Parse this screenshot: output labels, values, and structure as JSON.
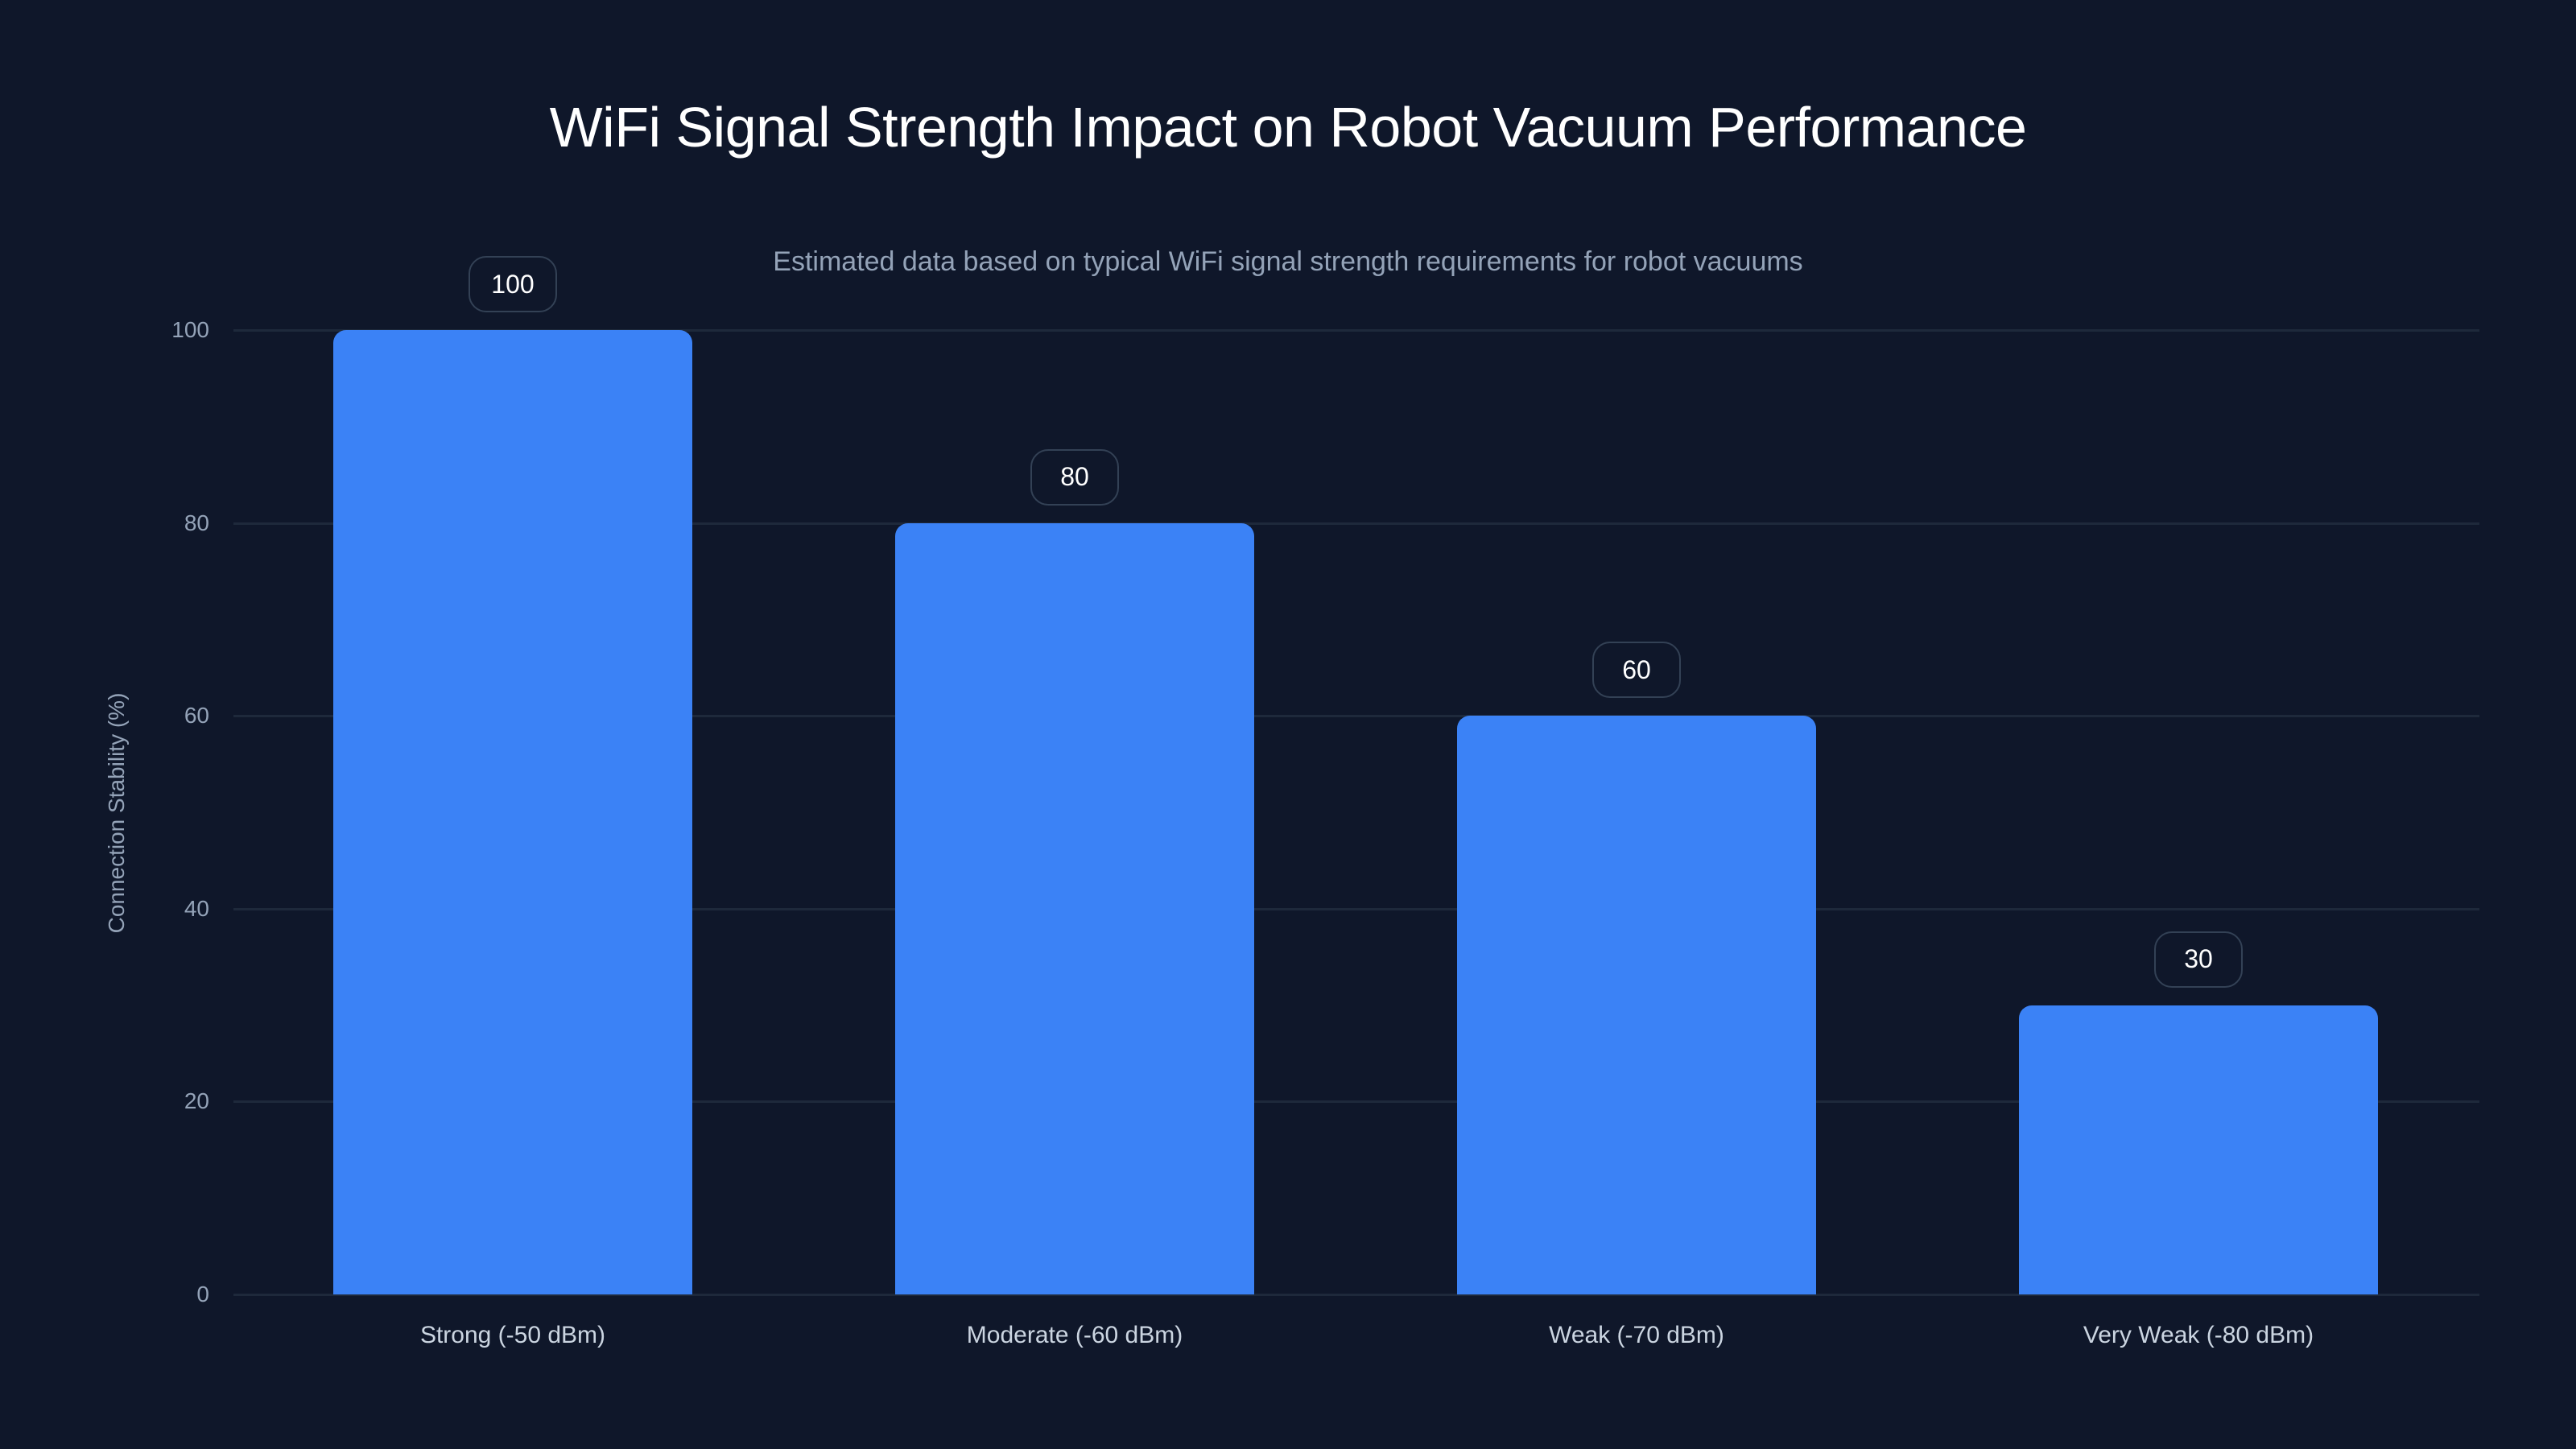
{
  "title": "WiFi Signal Strength Impact on Robot Vacuum Performance",
  "subtitle": "Estimated data based on typical WiFi signal strength requirements for robot vacuums",
  "y_axis": {
    "label": "Connection Stability (%)",
    "ticks": [
      "0",
      "20",
      "40",
      "60",
      "80",
      "100"
    ]
  },
  "bars": [
    {
      "category": "Strong (-50 dBm)",
      "value": 100,
      "label": "100"
    },
    {
      "category": "Moderate (-60 dBm)",
      "value": 80,
      "label": "80"
    },
    {
      "category": "Weak (-70 dBm)",
      "value": 60,
      "label": "60"
    },
    {
      "category": "Very Weak (-80 dBm)",
      "value": 30,
      "label": "30"
    }
  ],
  "colors": {
    "background": "#0f172a",
    "bar": "#3b82f6",
    "grid": "#1e293b",
    "label_border": "#334155",
    "text_primary": "#ffffff",
    "text_secondary": "#94a3b8"
  },
  "chart_data": {
    "type": "bar",
    "title": "WiFi Signal Strength Impact on Robot Vacuum Performance",
    "subtitle": "Estimated data based on typical WiFi signal strength requirements for robot vacuums",
    "categories": [
      "Strong (-50 dBm)",
      "Moderate (-60 dBm)",
      "Weak (-70 dBm)",
      "Very Weak (-80 dBm)"
    ],
    "values": [
      100,
      80,
      60,
      30
    ],
    "xlabel": "",
    "ylabel": "Connection Stability (%)",
    "ylim": [
      0,
      100
    ],
    "yticks": [
      0,
      20,
      40,
      60,
      80,
      100
    ],
    "grid": true,
    "legend": null,
    "data_labels": true
  }
}
